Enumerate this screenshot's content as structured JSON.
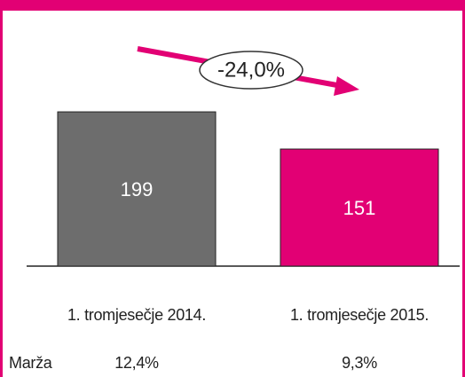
{
  "chart_data": {
    "type": "bar",
    "categories": [
      "1. tromjesečje 2014.",
      "1. tromjesečje 2015."
    ],
    "values": [
      199,
      151
    ],
    "colors": [
      "#6d6d6d",
      "#e20074"
    ],
    "annotation": "-24,0%",
    "margin_label": "Marža",
    "margins": [
      "12,4%",
      "9,3%"
    ]
  }
}
